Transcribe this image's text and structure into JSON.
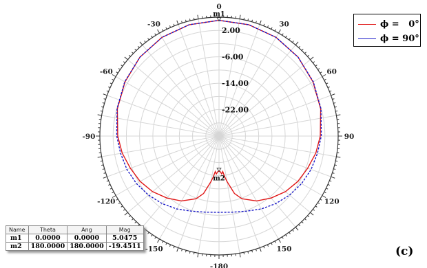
{
  "chart_data": {
    "type": "polar-line",
    "angle_unit": "deg",
    "radial_ticks": [
      "2.00",
      "-6.00",
      "-14.00",
      "-22.00"
    ],
    "radial_values": [
      2,
      -6,
      -14,
      -22
    ],
    "r_range": [
      -30,
      6
    ],
    "angle_ticks": [
      0,
      30,
      60,
      90,
      120,
      150,
      -180,
      -150,
      -120,
      -90,
      -60,
      -30
    ],
    "angle_tick_labels": [
      "0",
      "30",
      "60",
      "90",
      "120",
      "150",
      "-180",
      "-150",
      "-120",
      "-90",
      "-60",
      "-30"
    ],
    "series": [
      {
        "name": "ϕ =   0°",
        "color": "#e01818",
        "dash": "solid",
        "points": [
          [
            0,
            5.05
          ],
          [
            15,
            4.9
          ],
          [
            30,
            4.5
          ],
          [
            45,
            3.8
          ],
          [
            60,
            2.8
          ],
          [
            75,
            1.8
          ],
          [
            90,
            0.6
          ],
          [
            100,
            -0.3
          ],
          [
            110,
            -1.5
          ],
          [
            120,
            -2.5
          ],
          [
            130,
            -3.8
          ],
          [
            140,
            -5.5
          ],
          [
            150,
            -7.3
          ],
          [
            160,
            -9.8
          ],
          [
            165,
            -12
          ],
          [
            170,
            -16
          ],
          [
            172,
            -17.5
          ],
          [
            174,
            -19.2
          ],
          [
            176,
            -18.5
          ],
          [
            178,
            -19.2
          ],
          [
            180,
            -19.45
          ],
          [
            182,
            -19.2
          ],
          [
            184,
            -18.5
          ],
          [
            186,
            -19.2
          ],
          [
            188,
            -17.5
          ],
          [
            190,
            -16
          ],
          [
            195,
            -12
          ],
          [
            200,
            -9.8
          ],
          [
            210,
            -7.3
          ],
          [
            220,
            -5.5
          ],
          [
            230,
            -3.8
          ],
          [
            240,
            -2.5
          ],
          [
            250,
            -1.5
          ],
          [
            260,
            -0.3
          ],
          [
            270,
            0.6
          ],
          [
            285,
            1.8
          ],
          [
            300,
            2.8
          ],
          [
            315,
            3.8
          ],
          [
            330,
            4.5
          ],
          [
            345,
            4.9
          ],
          [
            360,
            5.05
          ]
        ]
      },
      {
        "name": "ϕ = 90°",
        "color": "#1818c8",
        "dash": "dashed",
        "points": [
          [
            0,
            5.05
          ],
          [
            15,
            4.9
          ],
          [
            30,
            4.5
          ],
          [
            45,
            3.8
          ],
          [
            60,
            2.9
          ],
          [
            75,
            1.9
          ],
          [
            90,
            0.9
          ],
          [
            100,
            0.2
          ],
          [
            110,
            -0.4
          ],
          [
            120,
            -1.2
          ],
          [
            130,
            -2.2
          ],
          [
            140,
            -3.3
          ],
          [
            150,
            -4.5
          ],
          [
            160,
            -5.8
          ],
          [
            170,
            -6.6
          ],
          [
            180,
            -6.9
          ],
          [
            190,
            -6.6
          ],
          [
            200,
            -5.8
          ],
          [
            210,
            -4.5
          ],
          [
            220,
            -3.3
          ],
          [
            230,
            -2.2
          ],
          [
            240,
            -1.2
          ],
          [
            250,
            -0.4
          ],
          [
            260,
            0.2
          ],
          [
            270,
            0.9
          ],
          [
            285,
            1.9
          ],
          [
            300,
            2.9
          ],
          [
            315,
            3.8
          ],
          [
            330,
            4.5
          ],
          [
            345,
            4.9
          ],
          [
            360,
            5.05
          ]
        ]
      }
    ],
    "markers": [
      {
        "name": "m1",
        "theta": "0.0000",
        "ang": "0.0000",
        "mag": "5.0475",
        "angle_value": 0,
        "r_value": 5.05
      },
      {
        "name": "m2",
        "theta": "180.0000",
        "ang": "180.0000",
        "mag": "-19.4511",
        "angle_value": 180,
        "r_value": -19.45
      }
    ],
    "legend_position": "top-right"
  },
  "marker_table": {
    "headers": [
      "Name",
      "Theta",
      "Ang",
      "Mag"
    ]
  },
  "caption": "(c)"
}
